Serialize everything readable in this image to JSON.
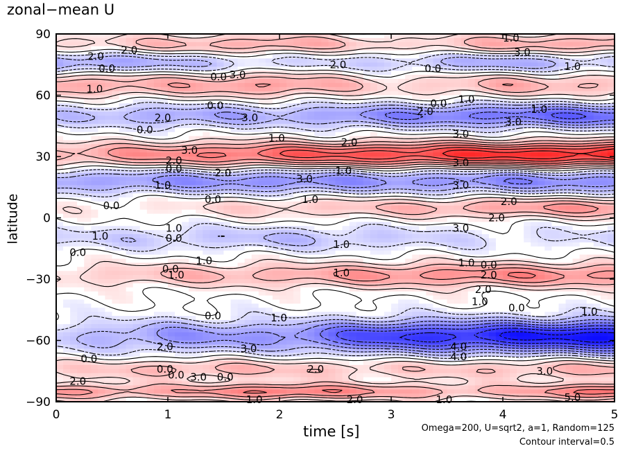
{
  "chart_data": {
    "type": "heatmap",
    "title": "zonal−mean U",
    "xlabel": "time [s]",
    "ylabel": "latitude",
    "xlim": [
      0,
      5
    ],
    "ylim": [
      -90,
      90
    ],
    "x_ticks": [
      "0",
      "1",
      "2",
      "3",
      "4",
      "5"
    ],
    "y_ticks": [
      "90",
      "60",
      "30",
      "0",
      "−30",
      "−60",
      "−90"
    ],
    "x_tick_values": [
      0,
      1,
      2,
      3,
      4,
      5
    ],
    "y_tick_values": [
      90,
      60,
      30,
      0,
      -30,
      -60,
      -90
    ],
    "colors": {
      "positive": "#ff0000",
      "negative": "#0000ff",
      "zero": "#ffffff"
    },
    "bands": [
      {
        "lat": 85,
        "width": 5,
        "amp": [
          0.6,
          1.0,
          1.4,
          0.6,
          1.2,
          1.4
        ]
      },
      {
        "lat": 76,
        "width": 5,
        "amp": [
          -1.6,
          -1.2,
          -0.6,
          -0.8,
          -1.4,
          -0.8
        ]
      },
      {
        "lat": 65,
        "width": 6,
        "amp": [
          1.4,
          1.2,
          1.6,
          0.6,
          1.2,
          1.0
        ]
      },
      {
        "lat": 50,
        "width": 6,
        "amp": [
          -0.8,
          -1.4,
          -1.2,
          -1.8,
          -2.2,
          -2.4
        ]
      },
      {
        "lat": 31,
        "width": 6,
        "amp": [
          1.2,
          1.8,
          2.4,
          2.8,
          3.2,
          3.4
        ]
      },
      {
        "lat": 18,
        "width": 6,
        "amp": [
          -1.4,
          -1.6,
          -1.8,
          -1.6,
          -1.8,
          -1.8
        ]
      },
      {
        "lat": 5,
        "width": 5,
        "amp": [
          0.2,
          0.4,
          0.8,
          1.0,
          1.4,
          1.6
        ]
      },
      {
        "lat": -10,
        "width": 6,
        "amp": [
          -0.6,
          -0.8,
          -1.0,
          -0.8,
          -0.4,
          -0.6
        ]
      },
      {
        "lat": -28,
        "width": 6,
        "amp": [
          0.6,
          1.0,
          1.2,
          1.6,
          1.8,
          1.6
        ]
      },
      {
        "lat": -58,
        "width": 8,
        "amp": [
          -0.8,
          -1.6,
          -1.6,
          -3.0,
          -3.4,
          -3.8
        ]
      },
      {
        "lat": -74,
        "width": 5,
        "amp": [
          0.6,
          1.2,
          1.0,
          0.8,
          1.0,
          1.2
        ]
      },
      {
        "lat": -85,
        "width": 4,
        "amp": [
          1.6,
          1.2,
          2.2,
          1.4,
          1.0,
          2.4
        ]
      }
    ],
    "contour_labels": [
      {
        "text": "2.0",
        "t": 0.28,
        "lat": 79
      },
      {
        "text": "0.0",
        "t": 0.38,
        "lat": 73
      },
      {
        "text": "2.0",
        "t": 0.58,
        "lat": 82
      },
      {
        "text": "1.0",
        "t": 0.27,
        "lat": 63
      },
      {
        "text": "3.0",
        "t": 1.55,
        "lat": 70
      },
      {
        "text": "0.0",
        "t": 1.38,
        "lat": 69
      },
      {
        "text": "2.0",
        "t": 2.45,
        "lat": 75
      },
      {
        "text": "0.0",
        "t": 3.3,
        "lat": 73
      },
      {
        "text": "1.0",
        "t": 4.0,
        "lat": 88
      },
      {
        "text": "3.0",
        "t": 4.1,
        "lat": 81
      },
      {
        "text": "1.0",
        "t": 4.55,
        "lat": 74
      },
      {
        "text": "1.0",
        "t": 3.6,
        "lat": 58
      },
      {
        "text": "2.0",
        "t": 3.23,
        "lat": 52
      },
      {
        "text": "0.0",
        "t": 3.35,
        "lat": 56
      },
      {
        "text": "1.0",
        "t": 4.25,
        "lat": 53
      },
      {
        "text": "3.0",
        "t": 4.02,
        "lat": 47
      },
      {
        "text": "0.0",
        "t": 1.35,
        "lat": 55
      },
      {
        "text": "3.0",
        "t": 1.66,
        "lat": 49
      },
      {
        "text": "2.0",
        "t": 0.88,
        "lat": 49
      },
      {
        "text": "0.0",
        "t": 0.72,
        "lat": 43
      },
      {
        "text": "1.0",
        "t": 1.9,
        "lat": 39
      },
      {
        "text": "2.0",
        "t": 2.55,
        "lat": 37
      },
      {
        "text": "3.0",
        "t": 1.12,
        "lat": 33
      },
      {
        "text": "2.0",
        "t": 0.98,
        "lat": 28
      },
      {
        "text": "0.0",
        "t": 0.98,
        "lat": 24
      },
      {
        "text": "2.0",
        "t": 1.42,
        "lat": 22
      },
      {
        "text": "1.0",
        "t": 2.5,
        "lat": 23
      },
      {
        "text": "3.0",
        "t": 2.15,
        "lat": 19
      },
      {
        "text": "1.0",
        "t": 0.88,
        "lat": 16
      },
      {
        "text": "0.0",
        "t": 1.33,
        "lat": 9
      },
      {
        "text": "1.0",
        "t": 2.2,
        "lat": 9
      },
      {
        "text": "0.0",
        "t": 0.42,
        "lat": 6
      },
      {
        "text": "2.0",
        "t": 3.98,
        "lat": 8
      },
      {
        "text": "2.0",
        "t": 3.87,
        "lat": 0
      },
      {
        "text": "1.0",
        "t": 0.98,
        "lat": -5
      },
      {
        "text": "0.0",
        "t": 0.98,
        "lat": -10
      },
      {
        "text": "1.0",
        "t": 0.32,
        "lat": -9
      },
      {
        "text": "0.0",
        "t": 0.12,
        "lat": -17
      },
      {
        "text": "1.0",
        "t": 2.48,
        "lat": -13
      },
      {
        "text": "1.0",
        "t": 1.25,
        "lat": -21
      },
      {
        "text": "0.0",
        "t": 0.95,
        "lat": -25
      },
      {
        "text": "1.0",
        "t": 1.0,
        "lat": -28
      },
      {
        "text": "1.0",
        "t": 2.48,
        "lat": -27
      },
      {
        "text": "1.0",
        "t": 3.6,
        "lat": -22
      },
      {
        "text": "0.0",
        "t": 3.8,
        "lat": -23
      },
      {
        "text": "2.0",
        "t": 3.8,
        "lat": -28
      },
      {
        "text": "2.0",
        "t": 3.75,
        "lat": -35
      },
      {
        "text": "1.0",
        "t": 3.72,
        "lat": -41
      },
      {
        "text": "0.0",
        "t": 4.05,
        "lat": -44
      },
      {
        "text": "1.0",
        "t": 4.7,
        "lat": -46
      },
      {
        "text": "0.0",
        "t": 1.33,
        "lat": -48
      },
      {
        "text": "1.0",
        "t": 1.92,
        "lat": -49
      },
      {
        "text": "2.0",
        "t": 0.9,
        "lat": -63
      },
      {
        "text": "3.0",
        "t": 1.65,
        "lat": -64
      },
      {
        "text": "0.0",
        "t": 0.22,
        "lat": -69
      },
      {
        "text": "0.0",
        "t": 0.9,
        "lat": -74
      },
      {
        "text": "0.0",
        "t": 1.0,
        "lat": -77
      },
      {
        "text": "3.0",
        "t": 1.2,
        "lat": -78
      },
      {
        "text": "0.0",
        "t": 1.44,
        "lat": -78
      },
      {
        "text": "2.0",
        "t": 2.25,
        "lat": -74
      },
      {
        "text": "2.0",
        "t": 0.12,
        "lat": -80
      },
      {
        "text": "1.0",
        "t": 1.7,
        "lat": -89
      },
      {
        "text": "1.0",
        "t": 3.4,
        "lat": -89
      },
      {
        "text": "3.0",
        "t": 4.3,
        "lat": -75
      },
      {
        "text": "5.0",
        "t": 4.55,
        "lat": -88
      },
      {
        "text": "2.0",
        "t": 2.6,
        "lat": -89
      },
      {
        "text": "3.0",
        "t": 3.55,
        "lat": 41
      },
      {
        "text": "3.0",
        "t": 3.55,
        "lat": 27
      },
      {
        "text": "3.0",
        "t": 3.55,
        "lat": 16
      },
      {
        "text": "3.0",
        "t": 3.55,
        "lat": -5
      },
      {
        "text": "4.0",
        "t": 3.53,
        "lat": -63
      },
      {
        "text": "4.0",
        "t": 3.53,
        "lat": -68
      }
    ]
  },
  "annotations": {
    "params": "Omega=200, U=sqrt2, a=1, Random=125",
    "contour_interval": "Contour interval=0.5"
  }
}
